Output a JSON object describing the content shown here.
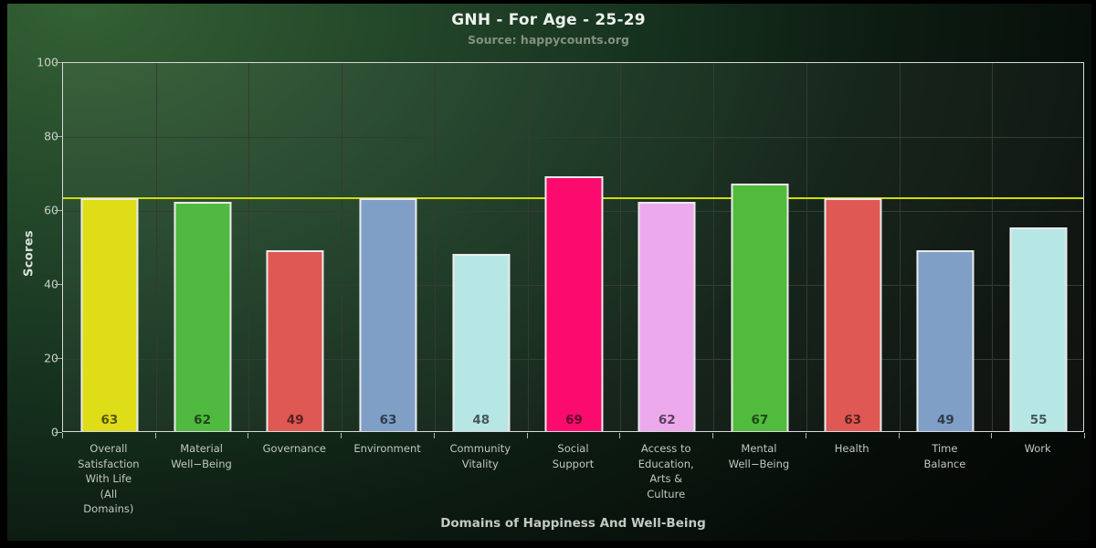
{
  "chart_data": {
    "type": "bar",
    "title": "GNH - For Age - 25-29",
    "subtitle": "Source: happycounts.org",
    "xlabel": "Domains of Happiness And Well-Being",
    "ylabel": "Scores",
    "ylim": [
      0,
      100
    ],
    "yticks": [
      0,
      20,
      40,
      60,
      80,
      100
    ],
    "grid": true,
    "legend_position": "none",
    "categories": [
      "Overall Satisfaction With Life (All Domains)",
      "Material Well−Being",
      "Governance",
      "Environment",
      "Community Vitality",
      "Social Support",
      "Access to Education, Arts & Culture",
      "Mental Well−Being",
      "Health",
      "Time Balance",
      "Work"
    ],
    "category_label_lines": [
      [
        "Overall",
        "Satisfaction",
        "With Life",
        "(All",
        "Domains)"
      ],
      [
        "Material",
        "Well−Being"
      ],
      [
        "Governance"
      ],
      [
        "Environment"
      ],
      [
        "Community",
        "Vitality"
      ],
      [
        "Social",
        "Support"
      ],
      [
        "Access to",
        "Education,",
        "Arts &",
        "Culture"
      ],
      [
        "Mental",
        "Well−Being"
      ],
      [
        "Health"
      ],
      [
        "Time",
        "Balance"
      ],
      [
        "Work"
      ]
    ],
    "values": [
      63,
      62,
      49,
      63,
      48,
      69,
      62,
      67,
      63,
      49,
      55
    ],
    "bar_colors": [
      "#dedd18",
      "#4fba3f",
      "#df5853",
      "#7f9fc7",
      "#b7e7e5",
      "#fb0b6e",
      "#ecaaec",
      "#51bb3e",
      "#df5853",
      "#7f9fc7",
      "#b7e7e5"
    ],
    "reference_line": {
      "value": 63.5,
      "color": "#cfdd02"
    }
  },
  "style_colors": {
    "bar_border": "#ebebeb",
    "gridline": "#353c33",
    "plot_border": "#d9d9d9",
    "value_label": "rgba(0,0,0,0.62)"
  }
}
